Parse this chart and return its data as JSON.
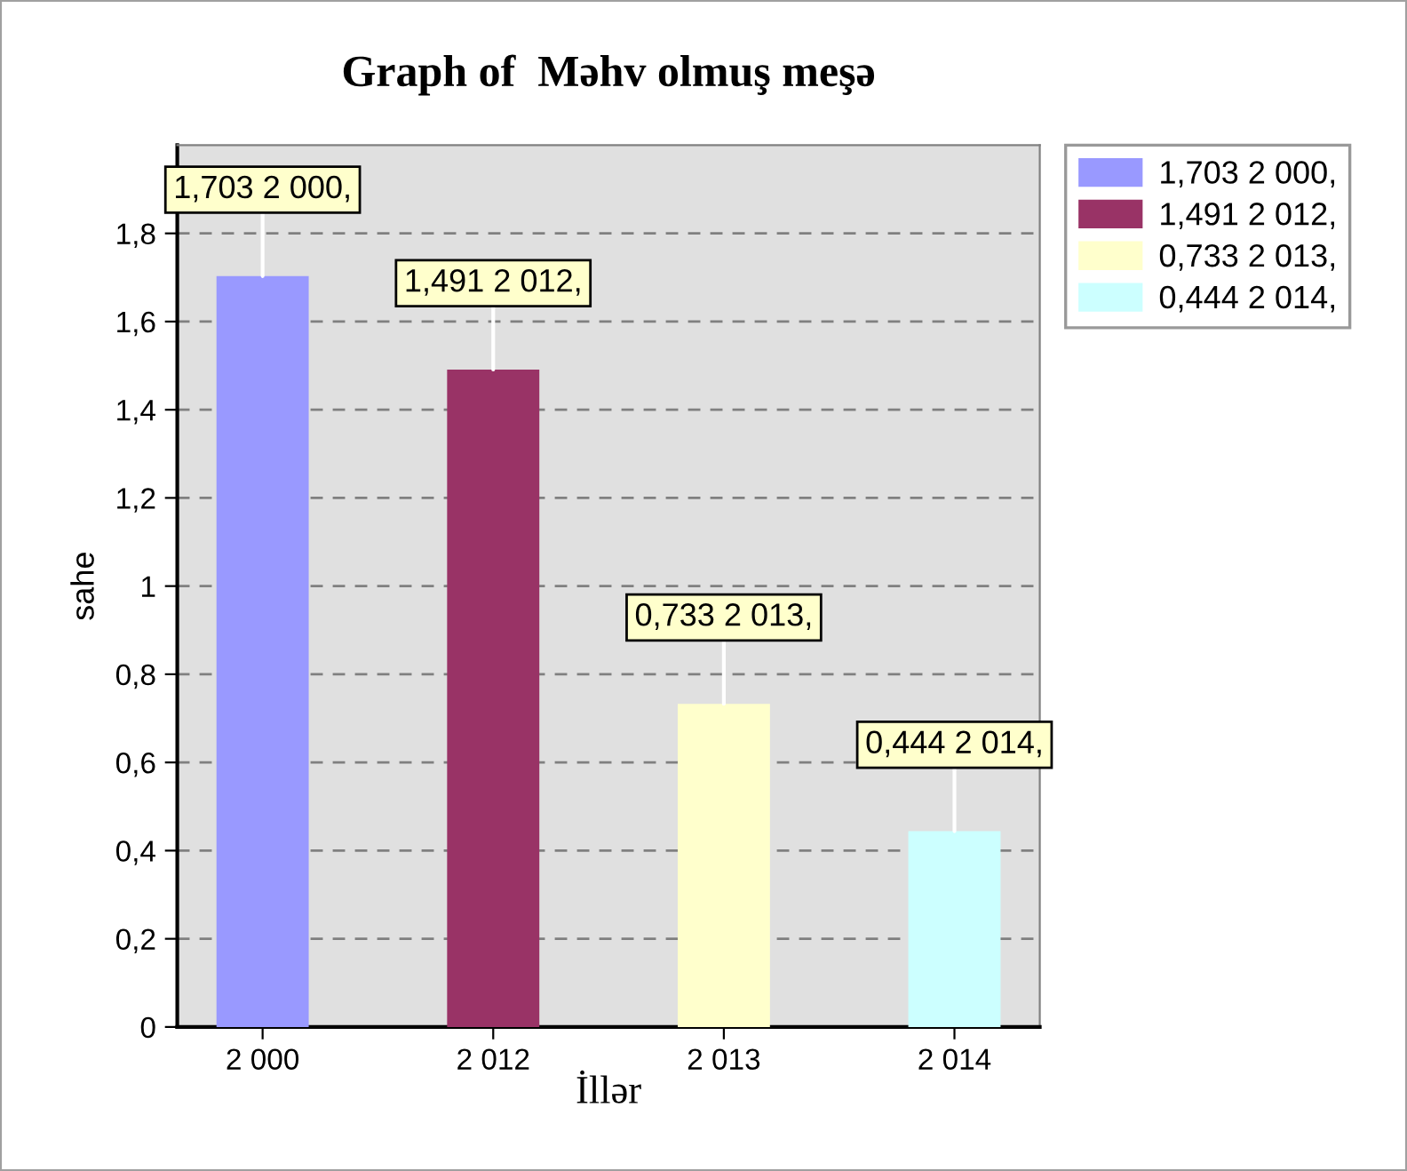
{
  "chart_data": {
    "type": "bar",
    "title": "Graph of  Məhv olmuş meşə",
    "xlabel": "İllər",
    "ylabel": "sahe",
    "categories": [
      "2 000",
      "2 012",
      "2 013",
      "2 014"
    ],
    "series": [
      {
        "name": "1,703 2 000,",
        "color": "#9999ff",
        "values": [
          1.703,
          null,
          null,
          null
        ],
        "value_labels": [
          "1,703 2 000,",
          null,
          null,
          null
        ]
      },
      {
        "name": "1,491 2 012,",
        "color": "#993366",
        "values": [
          null,
          1.491,
          null,
          null
        ],
        "value_labels": [
          null,
          "1,491 2 012,",
          null,
          null
        ]
      },
      {
        "name": "0,733 2 013,",
        "color": "#ffffcc",
        "values": [
          null,
          null,
          0.733,
          null
        ],
        "value_labels": [
          null,
          null,
          "0,733 2 013,",
          null
        ]
      },
      {
        "name": "0,444 2 014,",
        "color": "#ccffff",
        "values": [
          null,
          null,
          null,
          0.444
        ],
        "value_labels": [
          null,
          null,
          null,
          "0,444 2 014,"
        ]
      }
    ],
    "ylim": [
      0,
      2
    ],
    "yticks": [
      0,
      {
        "value": 0.2,
        "label": "0,2"
      },
      {
        "value": 0.4,
        "label": "0,4"
      },
      {
        "value": 0.6,
        "label": "0,6"
      },
      {
        "value": 0.8,
        "label": "0,8"
      },
      1,
      {
        "value": 1.2,
        "label": "1,2"
      },
      {
        "value": 1.4,
        "label": "1,4"
      },
      {
        "value": 1.6,
        "label": "1,6"
      },
      {
        "value": 1.8,
        "label": "1,8"
      }
    ],
    "grid": "y",
    "legend": "top right"
  }
}
